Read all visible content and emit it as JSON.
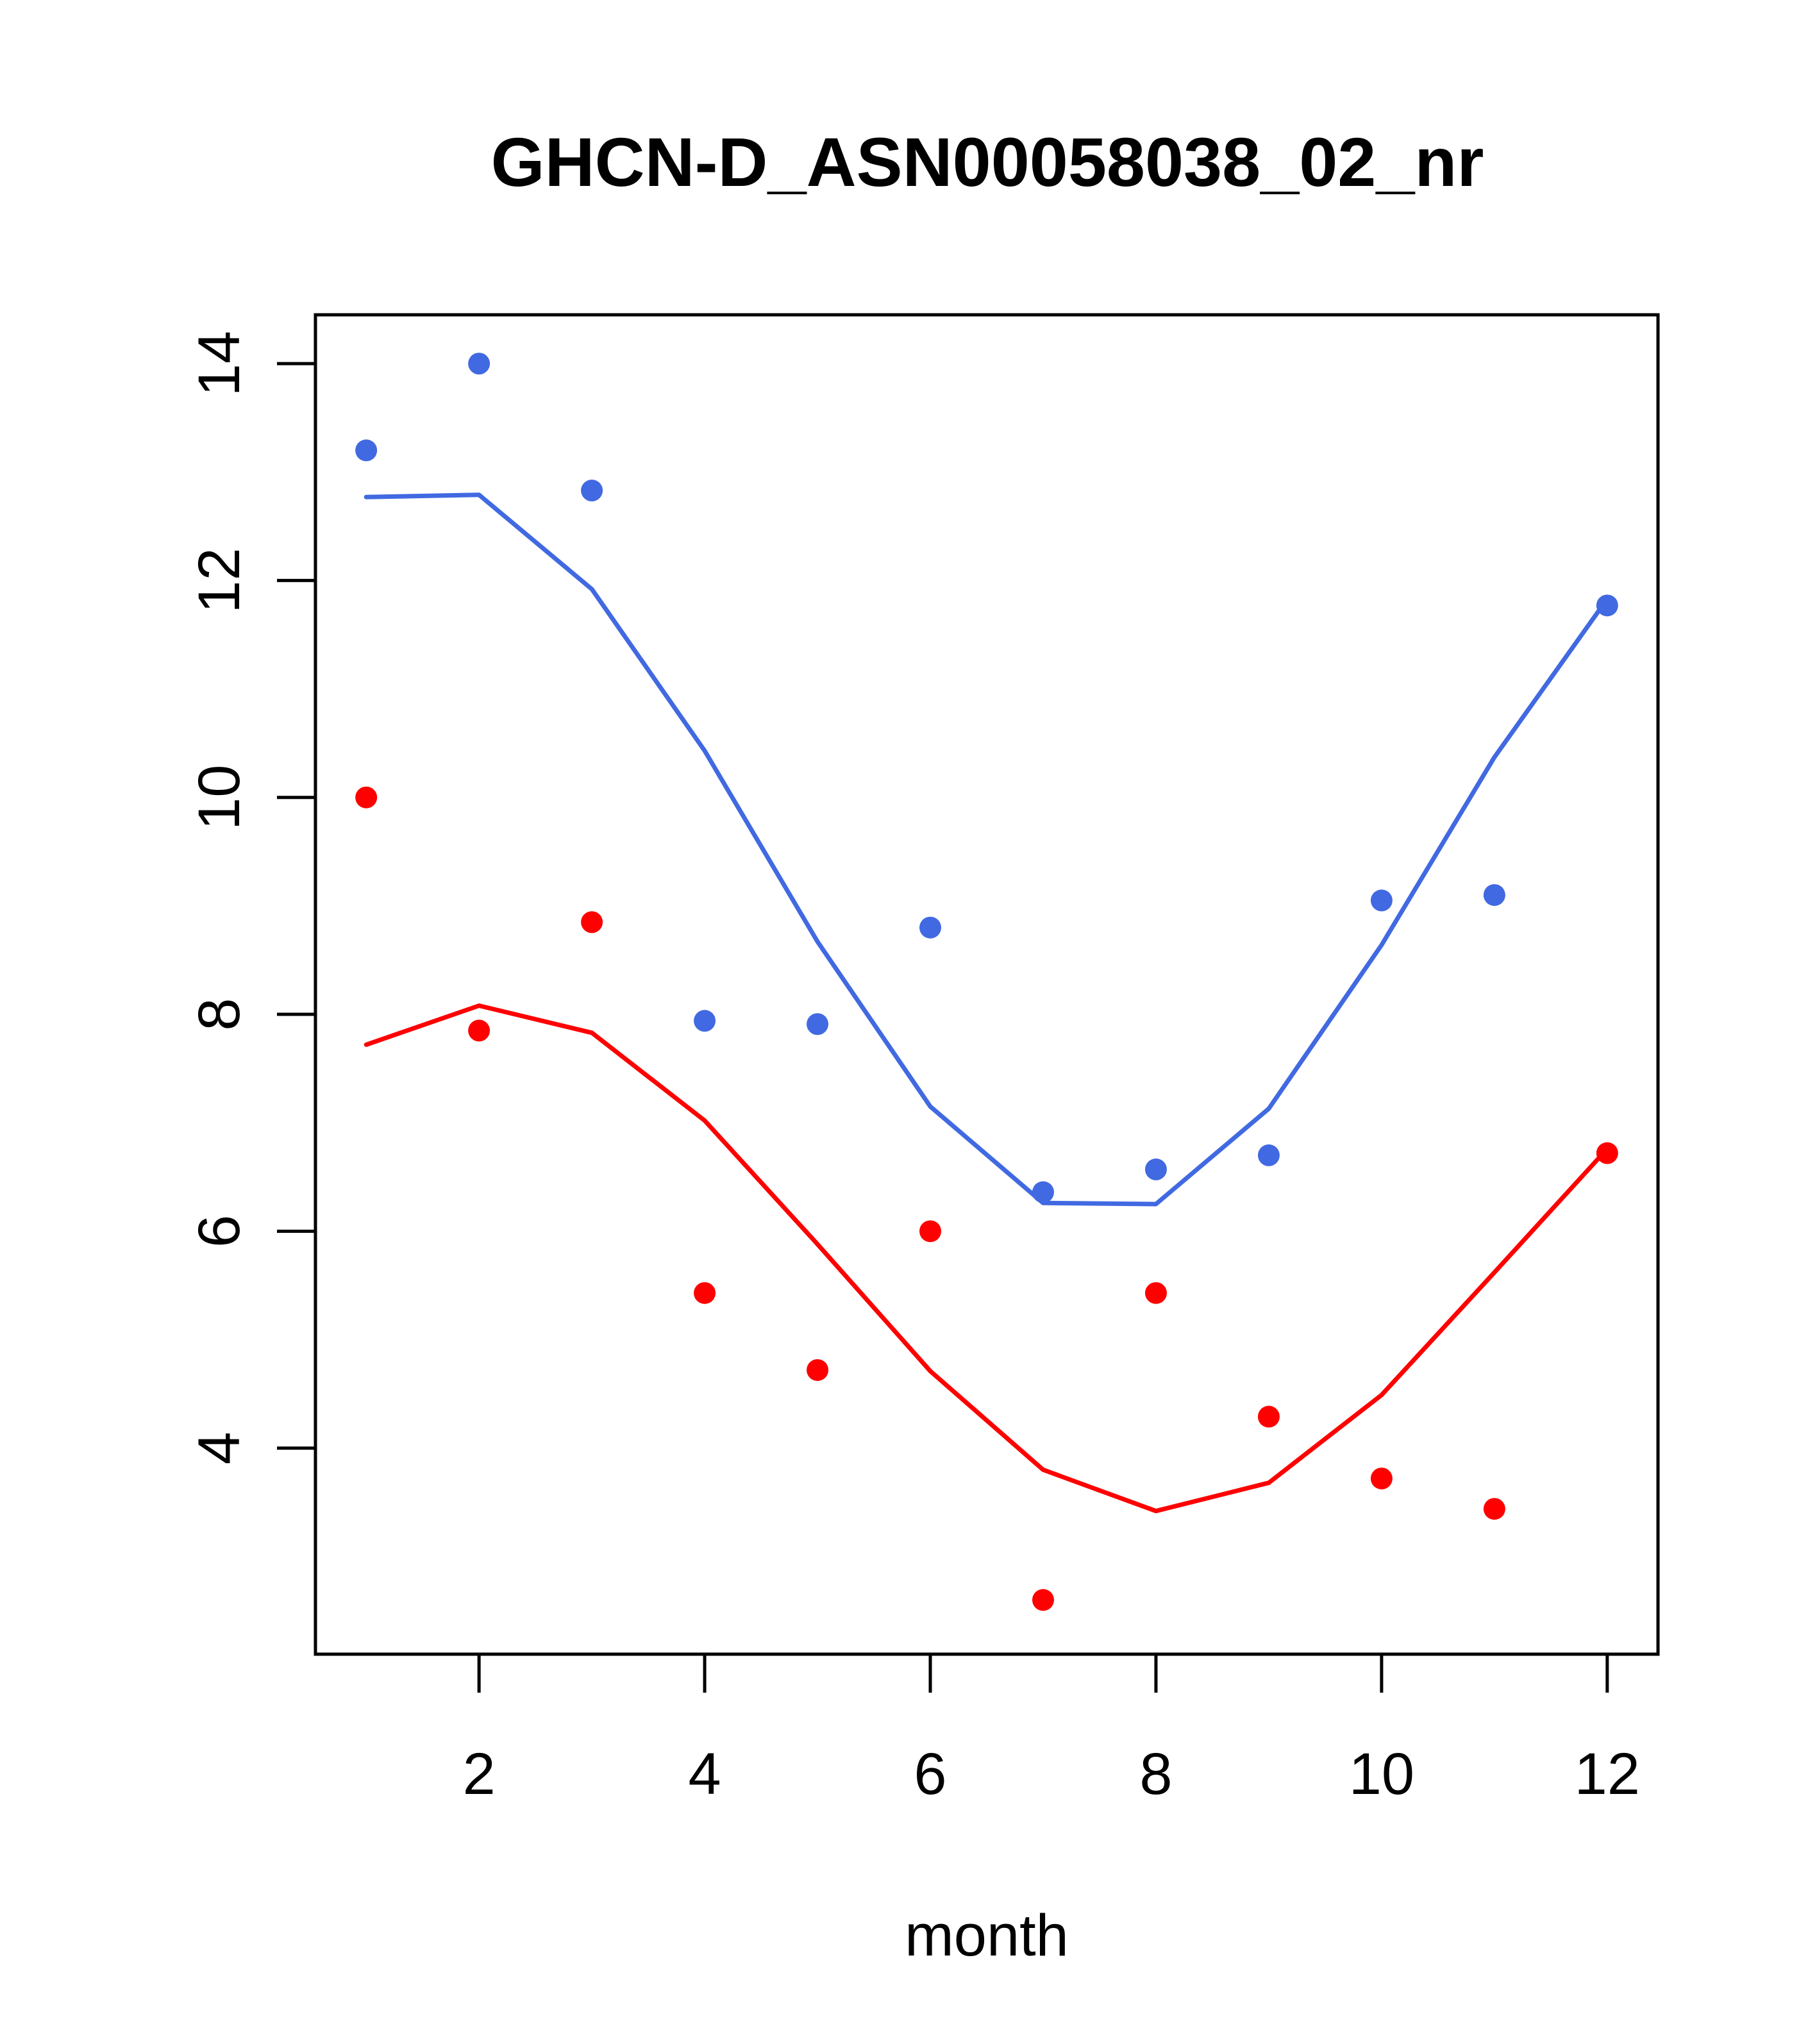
{
  "chart_data": {
    "type": "scatter",
    "title": "GHCN-D_ASN00058038_02_nr",
    "xlabel": "month",
    "ylabel": "",
    "xlim": [
      0.55,
      12.45
    ],
    "ylim": [
      2.1,
      14.45
    ],
    "x_ticks": [
      2,
      4,
      6,
      8,
      10,
      12
    ],
    "y_ticks": [
      4,
      6,
      8,
      10,
      12,
      14
    ],
    "grid": false,
    "series": [
      {
        "color": "#4169E1",
        "points_x": [
          1,
          2,
          3,
          4,
          5,
          6,
          7,
          8,
          9,
          10,
          11,
          12
        ],
        "points_y": [
          13.2,
          14.0,
          12.83,
          7.94,
          7.91,
          8.8,
          6.36,
          6.57,
          6.7,
          9.05,
          9.1,
          11.77
        ],
        "line_x": [
          1,
          2,
          3,
          4,
          5,
          6,
          7,
          8,
          9,
          10,
          11,
          12
        ],
        "line_y": [
          12.77,
          12.79,
          11.92,
          10.43,
          8.67,
          7.15,
          6.26,
          6.25,
          7.13,
          8.64,
          10.37,
          11.83
        ]
      },
      {
        "color": "#FF0000",
        "points_x": [
          1,
          2,
          3,
          4,
          5,
          6,
          7,
          8,
          9,
          10,
          11,
          12
        ],
        "points_y": [
          10.0,
          7.85,
          8.85,
          5.43,
          4.72,
          6.0,
          2.6,
          5.43,
          4.29,
          3.72,
          3.44,
          6.72
        ],
        "line_x": [
          1,
          2,
          3,
          4,
          5,
          6,
          7,
          8,
          9,
          10,
          11,
          12
        ],
        "line_y": [
          7.72,
          8.08,
          7.83,
          7.02,
          5.88,
          4.71,
          3.8,
          3.42,
          3.68,
          4.49,
          5.62,
          6.76
        ]
      }
    ]
  }
}
